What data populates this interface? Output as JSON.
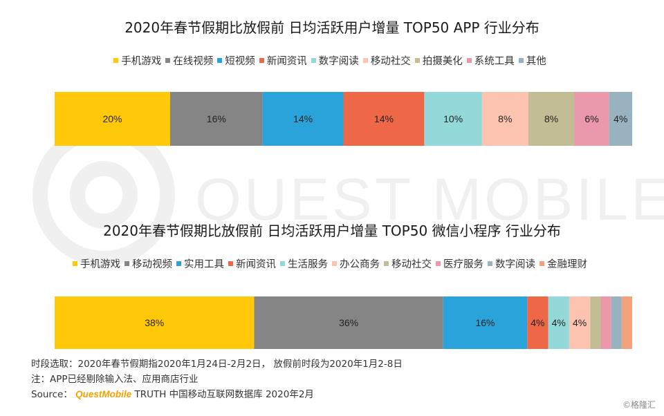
{
  "chart_data": [
    {
      "type": "bar",
      "stacked": true,
      "orientation": "horizontal",
      "title": "2020年春节假期比放假前 日均活跃用户增量 TOP50 APP 行业分布",
      "series": [
        {
          "name": "手机游戏",
          "value": 20,
          "label": "20%",
          "color": "#FFC90A"
        },
        {
          "name": "在线视频",
          "value": 16,
          "label": "16%",
          "color": "#858585"
        },
        {
          "name": "短视频",
          "value": 14,
          "label": "14%",
          "color": "#2AA3DA"
        },
        {
          "name": "新闻资讯",
          "value": 14,
          "label": "14%",
          "color": "#EE6848"
        },
        {
          "name": "数字阅读",
          "value": 10,
          "label": "10%",
          "color": "#93D9DA"
        },
        {
          "name": "移动社交",
          "value": 8,
          "label": "8%",
          "color": "#FDC3B1"
        },
        {
          "name": "拍摄美化",
          "value": 8,
          "label": "8%",
          "color": "#C3BD96"
        },
        {
          "name": "系统工具",
          "value": 6,
          "label": "6%",
          "color": "#E999AB"
        },
        {
          "name": "其他",
          "value": 4,
          "label": "4%",
          "color": "#98B2BF"
        }
      ]
    },
    {
      "type": "bar",
      "stacked": true,
      "orientation": "horizontal",
      "title": "2020年春节假期比放假前 日均活跃用户增量 TOP50 微信小程序 行业分布",
      "series": [
        {
          "name": "手机游戏",
          "value": 38,
          "label": "38%",
          "color": "#FFC90A"
        },
        {
          "name": "移动视频",
          "value": 36,
          "label": "36%",
          "color": "#858585"
        },
        {
          "name": "实用工具",
          "value": 16,
          "label": "16%",
          "color": "#2AA3DA"
        },
        {
          "name": "新闻资讯",
          "value": 4,
          "label": "4%",
          "color": "#EE6848"
        },
        {
          "name": "生活服务",
          "value": 4,
          "label": "4%",
          "color": "#93D9DA"
        },
        {
          "name": "办公商务",
          "value": 4,
          "label": "4%",
          "color": "#FDC3B1"
        },
        {
          "name": "移动社交",
          "value": 2,
          "label": "",
          "color": "#C3BD96"
        },
        {
          "name": "医疗服务",
          "value": 2,
          "label": "",
          "color": "#E999AB"
        },
        {
          "name": "数字阅读",
          "value": 2,
          "label": "",
          "color": "#98B2BF"
        },
        {
          "name": "金融理财",
          "value": 2,
          "label": "",
          "color": "#F4A07A"
        }
      ]
    }
  ],
  "watermark": "QUEST MOBILE",
  "notes": {
    "period": "时段选取：2020年春节假期指2020年1月24日-2月2日， 放假前时段为2020年1月2-8日",
    "remark": "注：APP已经剔除输入法、应用商店行业",
    "source_prefix": "Source：",
    "source_brand": "QuestMobile",
    "source_rest": " TRUTH 中国移动互联网数据库 2020年2月"
  },
  "credit": "©格隆汇"
}
